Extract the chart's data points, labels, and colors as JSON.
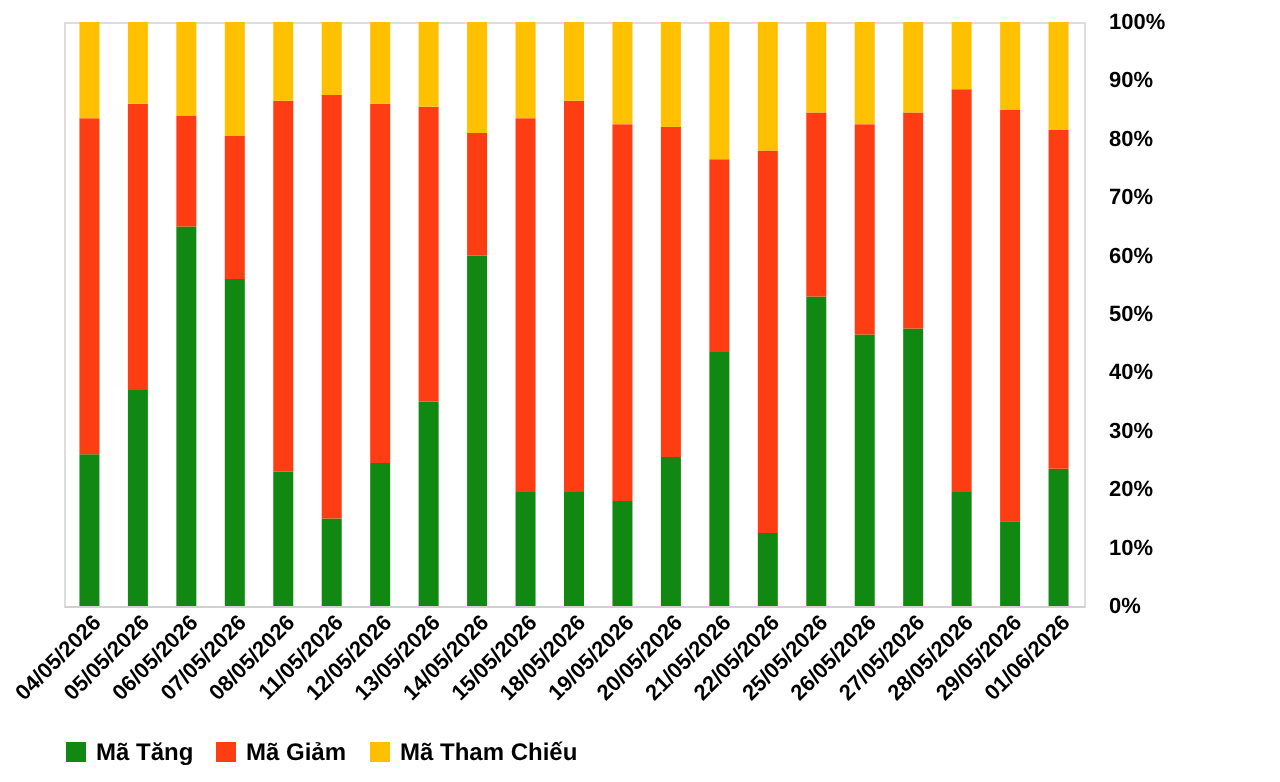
{
  "chart_data": {
    "type": "bar",
    "stacked": true,
    "categories": [
      "04/05/2026",
      "05/05/2026",
      "06/05/2026",
      "07/05/2026",
      "08/05/2026",
      "11/05/2026",
      "12/05/2026",
      "13/05/2026",
      "14/05/2026",
      "15/05/2026",
      "18/05/2026",
      "19/05/2026",
      "20/05/2026",
      "21/05/2026",
      "22/05/2026",
      "25/05/2026",
      "26/05/2026",
      "27/05/2026",
      "28/05/2026",
      "29/05/2026",
      "01/06/2026"
    ],
    "series": [
      {
        "name": "Mã Tăng",
        "color": "#118811",
        "values": [
          26,
          37,
          65,
          56,
          23,
          15,
          24.5,
          35,
          60,
          19.5,
          19.5,
          18,
          25.5,
          43.5,
          12.5,
          53,
          46.5,
          47.5,
          19.5,
          14.5,
          23.5
        ]
      },
      {
        "name": "Mã Giảm",
        "color": "#ff3d12",
        "values": [
          57.5,
          49,
          19,
          24.5,
          63.5,
          72.5,
          61.5,
          50.5,
          21,
          64,
          67,
          64.5,
          56.5,
          33,
          65.5,
          31.5,
          36,
          37,
          69,
          70.5,
          58
        ]
      },
      {
        "name": "Mã Tham Chiếu",
        "color": "#ffc000",
        "values": [
          16.5,
          14,
          16,
          19.5,
          13.5,
          12.5,
          14,
          14.5,
          19,
          16.5,
          13.5,
          17.5,
          18,
          23.5,
          22,
          15.5,
          17.5,
          15.5,
          11.5,
          15,
          18.5
        ]
      }
    ],
    "ylim": [
      0,
      100
    ],
    "yticks": [
      {
        "value": 0,
        "label": "0%"
      },
      {
        "value": 10,
        "label": "10%"
      },
      {
        "value": 20,
        "label": "20%"
      },
      {
        "value": 30,
        "label": "30%"
      },
      {
        "value": 40,
        "label": "40%"
      },
      {
        "value": 50,
        "label": "50%"
      },
      {
        "value": 60,
        "label": "60%"
      },
      {
        "value": 70,
        "label": "70%"
      },
      {
        "value": 80,
        "label": "80%"
      },
      {
        "value": 90,
        "label": "90%"
      },
      {
        "value": 100,
        "label": "100%"
      }
    ],
    "grid": false,
    "legend": "bottom"
  }
}
